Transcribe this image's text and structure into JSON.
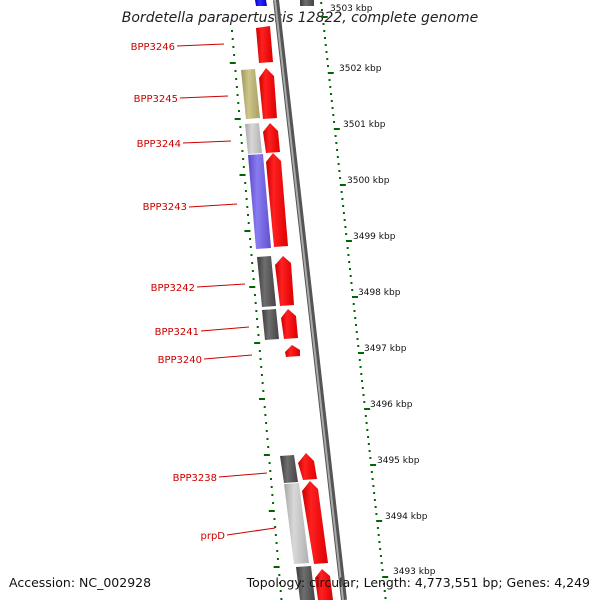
{
  "title": "Bordetella parapertussis 12822, complete genome",
  "footer": {
    "accession": "Accession: NC_002928",
    "topology": "Topology: circular; Length: 4,773,551 bp; Genes: 4,249"
  },
  "colors": {
    "forward_gene": "#ff0000",
    "reverse_gene_dark": "#5a5a5a",
    "reverse_gene_light": "#c0c0c0",
    "reverse_gene_olive": "#b8b070",
    "reverse_gene_purple": "#7060d8",
    "top_gene_blue": "#0000ff",
    "tick_green": "#006600",
    "label_red": "#cc0000"
  },
  "genes": [
    {
      "label": "BPP3246"
    },
    {
      "label": "BPP3245"
    },
    {
      "label": "BPP3244"
    },
    {
      "label": "BPP3243"
    },
    {
      "label": "BPP3242"
    },
    {
      "label": "BPP3241"
    },
    {
      "label": "BPP3240"
    },
    {
      "label": "BPP3238"
    },
    {
      "label": "prpD"
    }
  ],
  "kbp_ticks": [
    "3503 kbp",
    "3502 kbp",
    "3501 kbp",
    "3500 kbp",
    "3499 kbp",
    "3498 kbp",
    "3497 kbp",
    "3496 kbp",
    "3495 kbp",
    "3494 kbp",
    "3493 kbp"
  ]
}
